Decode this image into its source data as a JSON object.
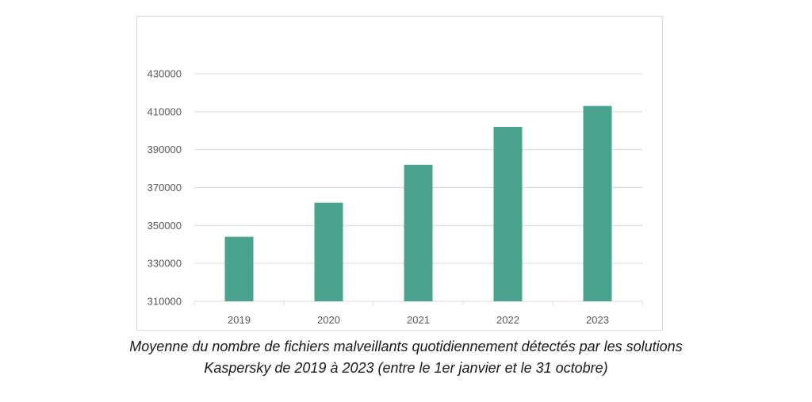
{
  "chart_data": {
    "type": "bar",
    "categories": [
      "2019",
      "2020",
      "2021",
      "2022",
      "2023"
    ],
    "values": [
      344000,
      362000,
      382000,
      402000,
      413000
    ],
    "ylim": [
      310000,
      430000
    ],
    "yticks": [
      "310000",
      "330000",
      "350000",
      "370000",
      "390000",
      "410000",
      "430000"
    ],
    "grid": true,
    "bar_color": "#4ba38e",
    "grid_color": "#d9d9d9",
    "legend": "none"
  },
  "caption": {
    "line1": "Moyenne du nombre de fichiers malveillants quotidiennement détectés par les solutions",
    "line2": "Kaspersky de 2019 à 2023 (entre le 1er janvier et le 31 octobre)"
  }
}
